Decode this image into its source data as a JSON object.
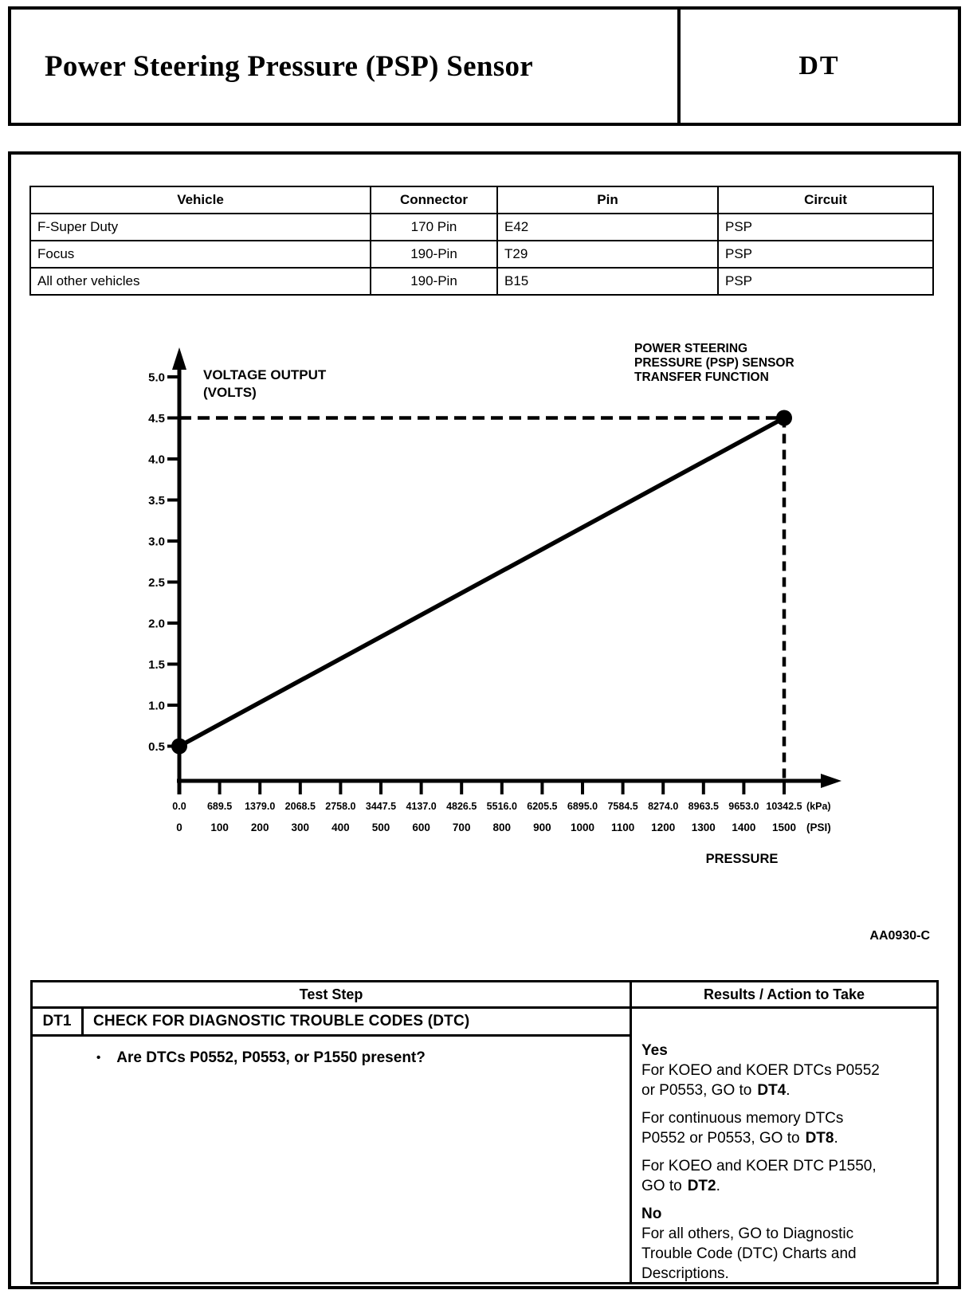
{
  "header": {
    "title": "Power Steering Pressure (PSP) Sensor",
    "code": "DT"
  },
  "connector_table": {
    "headers": [
      "Vehicle",
      "Connector",
      "Pin",
      "Circuit"
    ],
    "rows": [
      [
        "F-Super Duty",
        "170 Pin",
        "E42",
        "PSP"
      ],
      [
        "Focus",
        "190-Pin",
        "T29",
        "PSP"
      ],
      [
        "All other vehicles",
        "190-Pin",
        "B15",
        "PSP"
      ]
    ]
  },
  "chart_data": {
    "type": "line",
    "title_lines": [
      "POWER STEERING",
      "PRESSURE (PSP) SENSOR",
      "TRANSFER FUNCTION"
    ],
    "ylabel_lines": [
      "VOLTAGE OUTPUT",
      "(VOLTS)"
    ],
    "xlabel": "PRESSURE",
    "figure_code": "AA0930-C",
    "y_ticks": [
      "0.5",
      "1.0",
      "1.5",
      "2.0",
      "2.5",
      "3.0",
      "3.5",
      "4.0",
      "4.5",
      "5.0"
    ],
    "x_ticks_kpa": [
      "0.0",
      "689.5",
      "1379.0",
      "2068.5",
      "2758.0",
      "3447.5",
      "4137.0",
      "4826.5",
      "5516.0",
      "6205.5",
      "6895.0",
      "7584.5",
      "8274.0",
      "8963.5",
      "9653.0",
      "10342.5"
    ],
    "x_unit_kpa": "(kPa)",
    "x_ticks_psi": [
      "0",
      "100",
      "200",
      "300",
      "400",
      "500",
      "600",
      "700",
      "800",
      "900",
      "1000",
      "1100",
      "1200",
      "1300",
      "1400",
      "1500"
    ],
    "x_unit_psi": "(PSI)",
    "x_range_kpa": [
      0,
      10342.5
    ],
    "y_range_volts": [
      0,
      5.0
    ],
    "points": [
      {
        "pressure_kpa": 0,
        "pressure_psi": 0,
        "volts": 0.5
      },
      {
        "pressure_kpa": 10342.5,
        "pressure_psi": 1500,
        "volts": 4.5
      }
    ],
    "reference_lines": {
      "horizontal_volts": 4.5,
      "vertical_kpa": 10342.5
    }
  },
  "test_table": {
    "col_test_step": "Test Step",
    "col_results": "Results / Action to Take",
    "step_id": "DT1",
    "step_title": "CHECK FOR DIAGNOSTIC TROUBLE CODES (DTC)",
    "bullet_glyph": "•",
    "bullet_text": "Are DTCs P0552, P0553, or P1550 present?",
    "results": {
      "yes_label": "Yes",
      "yes_items": [
        {
          "text": "For KOEO and KOER DTCs P0552 or P0553, GO to",
          "link": "DT4",
          "suffix": "."
        },
        {
          "text": "For continuous memory DTCs P0552 or P0553, GO to",
          "link": "DT8",
          "suffix": "."
        },
        {
          "text": "For KOEO and KOER DTC P1550, GO to",
          "link": "DT2",
          "suffix": "."
        }
      ],
      "no_label": "No",
      "no_text": "For all others, GO to Diagnostic Trouble Code (DTC) Charts and Descriptions."
    }
  }
}
